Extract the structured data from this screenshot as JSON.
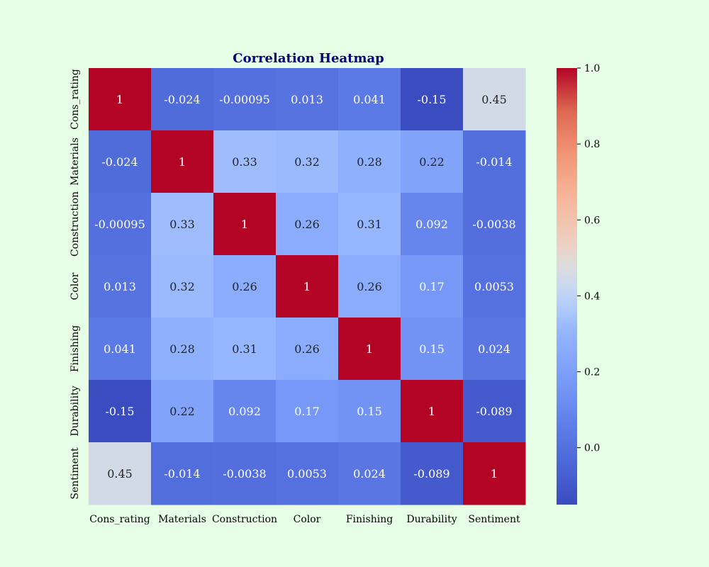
{
  "chart_data": {
    "type": "heatmap",
    "title": "Correlation Heatmap",
    "x_labels": [
      "Cons_rating",
      "Materials",
      "Construction",
      "Color",
      "Finishing",
      "Durability",
      "Sentiment"
    ],
    "y_labels": [
      "Cons_rating",
      "Materials",
      "Construction",
      "Color",
      "Finishing",
      "Durability",
      "Sentiment"
    ],
    "matrix": [
      [
        1,
        -0.024,
        -0.00095,
        0.013,
        0.041,
        -0.15,
        0.45
      ],
      [
        -0.024,
        1,
        0.33,
        0.32,
        0.28,
        0.22,
        -0.014
      ],
      [
        -0.00095,
        0.33,
        1,
        0.26,
        0.31,
        0.092,
        -0.0038
      ],
      [
        0.013,
        0.32,
        0.26,
        1,
        0.26,
        0.17,
        0.0053
      ],
      [
        0.041,
        0.28,
        0.31,
        0.26,
        1,
        0.15,
        0.024
      ],
      [
        -0.15,
        0.22,
        0.092,
        0.17,
        0.15,
        1,
        -0.089
      ],
      [
        0.45,
        -0.014,
        -0.0038,
        0.0053,
        0.024,
        -0.089,
        1
      ]
    ],
    "value_labels": [
      [
        "1",
        "-0.024",
        "-0.00095",
        "0.013",
        "0.041",
        "-0.15",
        "0.45"
      ],
      [
        "-0.024",
        "1",
        "0.33",
        "0.32",
        "0.28",
        "0.22",
        "-0.014"
      ],
      [
        "-0.00095",
        "0.33",
        "1",
        "0.26",
        "0.31",
        "0.092",
        "-0.0038"
      ],
      [
        "0.013",
        "0.32",
        "0.26",
        "1",
        "0.26",
        "0.17",
        "0.0053"
      ],
      [
        "0.041",
        "0.28",
        "0.31",
        "0.26",
        "1",
        "0.15",
        "0.024"
      ],
      [
        "-0.15",
        "0.22",
        "0.092",
        "0.17",
        "0.15",
        "1",
        "-0.089"
      ],
      [
        "0.45",
        "-0.014",
        "-0.0038",
        "0.0053",
        "0.024",
        "-0.089",
        "1"
      ]
    ],
    "colormap": "coolwarm",
    "vmin": -0.15,
    "vmax": 1.0,
    "colorbar_ticks": [
      0.0,
      0.2,
      0.4,
      0.6,
      0.8,
      1.0
    ],
    "colorbar_tick_labels": [
      "0.0",
      "0.2",
      "0.4",
      "0.6",
      "0.8",
      "1.0"
    ],
    "colorbar_position": "right",
    "grid": false,
    "background_color": "#e6ffe6",
    "title_color": "#00007f"
  }
}
